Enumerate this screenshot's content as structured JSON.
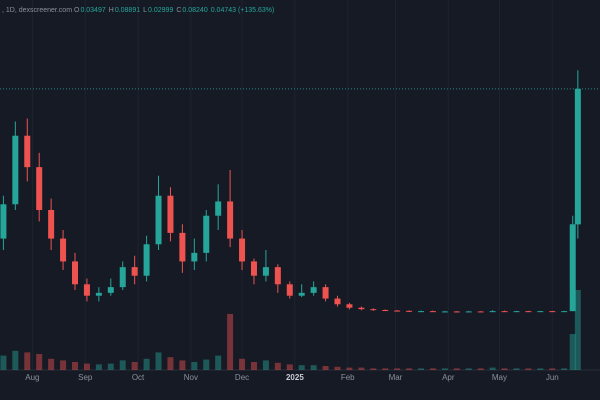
{
  "chart_data": {
    "type": "candlestick",
    "header": {
      "prefix": ", 1D, dexscreener.com",
      "items": [
        {
          "key": "O",
          "text": "0.03497"
        },
        {
          "key": "H",
          "text": "0.08891"
        },
        {
          "key": "L",
          "text": "0.02999"
        },
        {
          "key": "C",
          "text": "0.08240"
        }
      ],
      "change": "0.04743 (+135.63%)"
    },
    "x": [
      0,
      7,
      14,
      21,
      28,
      35,
      42,
      49,
      56,
      63,
      70,
      77,
      84,
      91,
      98,
      105,
      112,
      119,
      126,
      133,
      140,
      147,
      154,
      161,
      168,
      175,
      182,
      189,
      196,
      203,
      210,
      217,
      224,
      231,
      238,
      245,
      252,
      259,
      266,
      273,
      280,
      287,
      294,
      301,
      308,
      315,
      322,
      329,
      334,
      337
    ],
    "open": [
      0.03,
      0.042,
      0.066,
      0.055,
      0.04,
      0.03,
      0.022,
      0.014,
      0.01,
      0.011,
      0.013,
      0.02,
      0.017,
      0.028,
      0.045,
      0.032,
      0.022,
      0.025,
      0.038,
      0.043,
      0.03,
      0.022,
      0.017,
      0.02,
      0.014,
      0.01,
      0.011,
      0.013,
      0.009,
      0.007,
      0.0058,
      0.0053,
      0.005,
      0.0048,
      0.0047,
      0.0046,
      0.0046,
      0.0045,
      0.0045,
      0.0044,
      0.0045,
      0.0044,
      0.0046,
      0.0045,
      0.0046,
      0.0045,
      0.0046,
      0.0045,
      0.0046,
      0.03497
    ],
    "high": [
      0.045,
      0.071,
      0.072,
      0.06,
      0.044,
      0.033,
      0.025,
      0.016,
      0.013,
      0.016,
      0.022,
      0.024,
      0.031,
      0.052,
      0.048,
      0.035,
      0.03,
      0.04,
      0.049,
      0.054,
      0.033,
      0.023,
      0.026,
      0.021,
      0.015,
      0.014,
      0.015,
      0.014,
      0.01,
      0.0075,
      0.0062,
      0.0056,
      0.0052,
      0.005,
      0.0049,
      0.0048,
      0.0048,
      0.0047,
      0.0046,
      0.0047,
      0.0046,
      0.0049,
      0.0048,
      0.0047,
      0.0047,
      0.0047,
      0.0047,
      0.0047,
      0.038,
      0.08891
    ],
    "low": [
      0.026,
      0.04,
      0.05,
      0.036,
      0.026,
      0.019,
      0.012,
      0.008,
      0.008,
      0.01,
      0.012,
      0.014,
      0.015,
      0.026,
      0.029,
      0.018,
      0.019,
      0.022,
      0.033,
      0.027,
      0.019,
      0.014,
      0.015,
      0.011,
      0.009,
      0.0095,
      0.01,
      0.008,
      0.0062,
      0.0052,
      0.0049,
      0.0047,
      0.0046,
      0.0045,
      0.0044,
      0.0044,
      0.0043,
      0.0043,
      0.0042,
      0.0043,
      0.0042,
      0.0043,
      0.0043,
      0.0044,
      0.0044,
      0.0044,
      0.0044,
      0.0044,
      0.0046,
      0.02999
    ],
    "close": [
      0.042,
      0.066,
      0.055,
      0.04,
      0.03,
      0.022,
      0.014,
      0.01,
      0.011,
      0.013,
      0.02,
      0.017,
      0.028,
      0.045,
      0.032,
      0.022,
      0.025,
      0.038,
      0.043,
      0.03,
      0.022,
      0.017,
      0.02,
      0.014,
      0.01,
      0.011,
      0.013,
      0.009,
      0.007,
      0.0058,
      0.0053,
      0.005,
      0.0048,
      0.0047,
      0.0046,
      0.0046,
      0.0045,
      0.0045,
      0.0044,
      0.0045,
      0.0044,
      0.0046,
      0.0045,
      0.0046,
      0.0045,
      0.0046,
      0.0045,
      0.0046,
      0.035,
      0.0824
    ],
    "volume": [
      18,
      24,
      22,
      20,
      14,
      12,
      10,
      8,
      7,
      8,
      12,
      10,
      14,
      22,
      16,
      12,
      10,
      13,
      18,
      70,
      14,
      10,
      12,
      9,
      7,
      6,
      6,
      5,
      4,
      3,
      3,
      2,
      2,
      2,
      2,
      2,
      2,
      2,
      2,
      2,
      2,
      3,
      2,
      2,
      2,
      2,
      2,
      2,
      45,
      100
    ],
    "up_color": "#26a69a",
    "down_color": "#ef5350",
    "xlim": [
      -2,
      350
    ],
    "ylim": [
      -0.016,
      0.11
    ],
    "vlim": [
      0,
      100
    ],
    "xticks": [
      {
        "value": 17,
        "label": "Aug"
      },
      {
        "value": 48,
        "label": "Sep"
      },
      {
        "value": 79,
        "label": "Oct"
      },
      {
        "value": 110,
        "label": "Nov"
      },
      {
        "value": 140,
        "label": "Dec"
      },
      {
        "value": 171,
        "label": "2025"
      },
      {
        "value": 202,
        "label": "Feb"
      },
      {
        "value": 230,
        "label": "Mar"
      },
      {
        "value": 261,
        "label": "Apr"
      },
      {
        "value": 291,
        "label": "May"
      },
      {
        "value": 322,
        "label": "Jun"
      }
    ],
    "grid": true
  }
}
